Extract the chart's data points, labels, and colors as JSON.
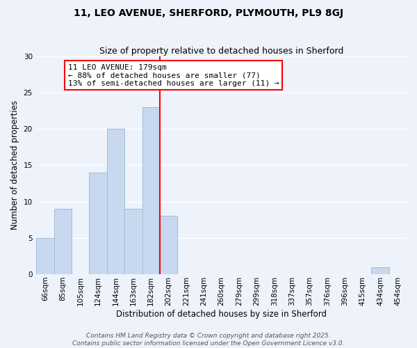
{
  "title": "11, LEO AVENUE, SHERFORD, PLYMOUTH, PL9 8GJ",
  "subtitle": "Size of property relative to detached houses in Sherford",
  "xlabel": "Distribution of detached houses by size in Sherford",
  "ylabel": "Number of detached properties",
  "bin_labels": [
    "66sqm",
    "85sqm",
    "105sqm",
    "124sqm",
    "144sqm",
    "163sqm",
    "182sqm",
    "202sqm",
    "221sqm",
    "241sqm",
    "260sqm",
    "279sqm",
    "299sqm",
    "318sqm",
    "337sqm",
    "357sqm",
    "376sqm",
    "396sqm",
    "415sqm",
    "434sqm",
    "454sqm"
  ],
  "bin_values": [
    5,
    9,
    0,
    14,
    20,
    9,
    23,
    8,
    0,
    0,
    0,
    0,
    0,
    0,
    0,
    0,
    0,
    0,
    0,
    1,
    0
  ],
  "bar_color": "#c8d9ef",
  "bar_edge_color": "#a0bcd8",
  "red_line_index": 6,
  "ylim": [
    0,
    30
  ],
  "yticks": [
    0,
    5,
    10,
    15,
    20,
    25,
    30
  ],
  "annotation_title": "11 LEO AVENUE: 179sqm",
  "annotation_line1": "← 88% of detached houses are smaller (77)",
  "annotation_line2": "13% of semi-detached houses are larger (11) →",
  "footer_line1": "Contains HM Land Registry data © Crown copyright and database right 2025.",
  "footer_line2": "Contains public sector information licensed under the Open Government Licence v3.0.",
  "background_color": "#eef2fb",
  "grid_color": "#ffffff",
  "title_fontsize": 10,
  "subtitle_fontsize": 9,
  "axis_label_fontsize": 8.5,
  "tick_fontsize": 7.5,
  "annotation_fontsize": 8,
  "footer_fontsize": 6.5
}
